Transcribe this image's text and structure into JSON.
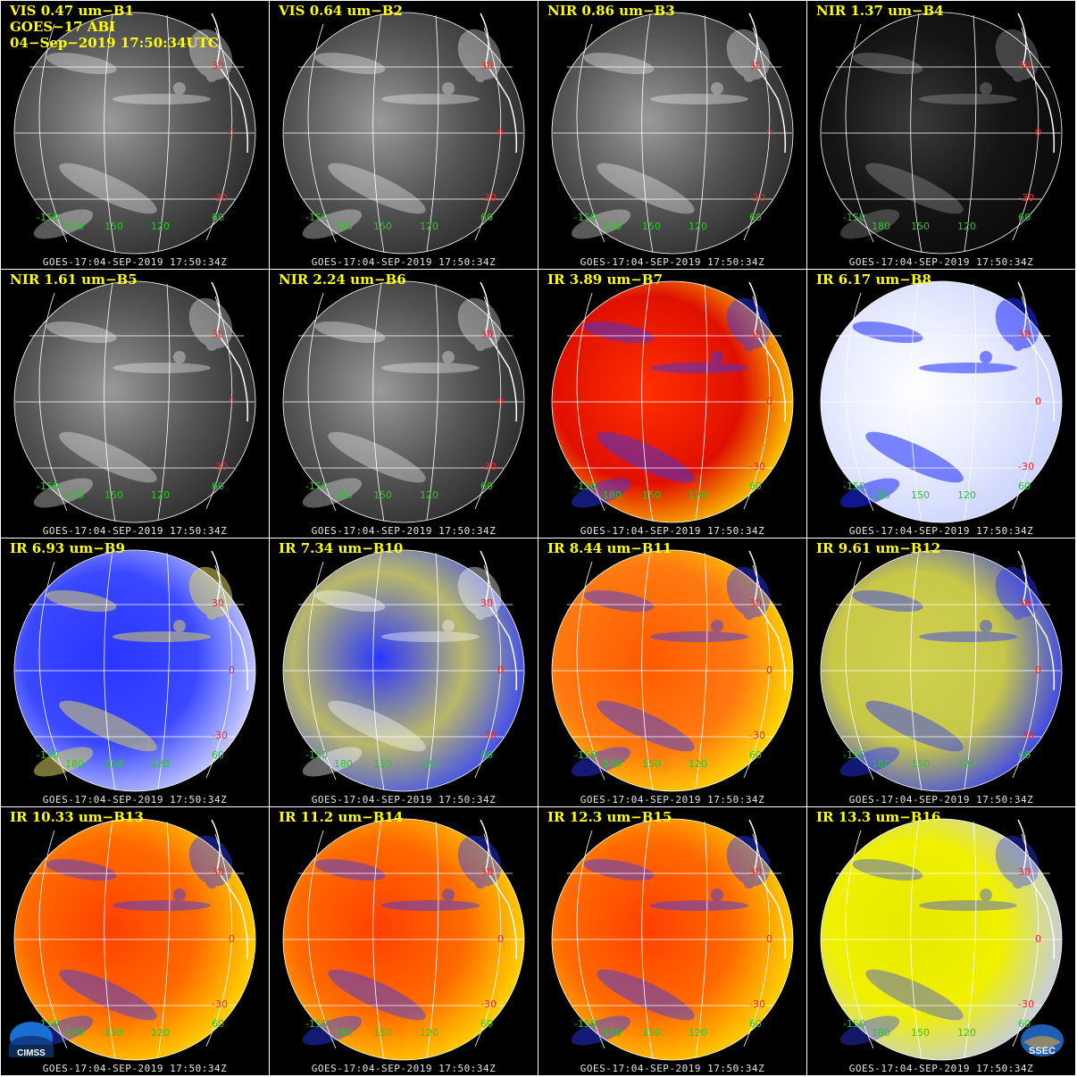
{
  "header": {
    "line2": "GOES−17 ABI",
    "line3": "04−Sep−2019 17:50:34UTC"
  },
  "footer_text": "GOES-17:04-SEP-2019 17:50:34Z",
  "latitude_labels": [
    "30",
    "0",
    "-30"
  ],
  "longitude_labels": [
    "-150",
    "180",
    "150",
    "120",
    "60"
  ],
  "colors": {
    "title": "#ffff00",
    "lat_label": "#ff2020",
    "lon_label": "#22cc22",
    "grid": "#ffffff"
  },
  "logos": {
    "left": "CIMSS",
    "right": "SSEC"
  },
  "bands": [
    {
      "title": "VIS 0.47 um−B1",
      "style": "vis"
    },
    {
      "title": "VIS 0.64 um−B2",
      "style": "vis"
    },
    {
      "title": "NIR 0.86 um−B3",
      "style": "vis"
    },
    {
      "title": "NIR 1.37 um−B4",
      "style": "dark"
    },
    {
      "title": "NIR 1.61 um−B5",
      "style": "vis"
    },
    {
      "title": "NIR 2.24 um−B6",
      "style": "vis"
    },
    {
      "title": "IR 3.89 um−B7",
      "style": "redir"
    },
    {
      "title": "IR 6.17 um−B8",
      "style": "wv1"
    },
    {
      "title": "IR 6.93 um−B9",
      "style": "wv2"
    },
    {
      "title": "IR 7.34 um−B10",
      "style": "wv3"
    },
    {
      "title": "IR 8.44 um−B11",
      "style": "orangeir"
    },
    {
      "title": "IR 9.61 um−B12",
      "style": "ozone"
    },
    {
      "title": "IR 10.33 um−B13",
      "style": "redir2"
    },
    {
      "title": "IR 11.2 um−B14",
      "style": "redir2"
    },
    {
      "title": "IR 12.3 um−B15",
      "style": "redir2"
    },
    {
      "title": "IR 13.3 um−B16",
      "style": "co2"
    }
  ]
}
